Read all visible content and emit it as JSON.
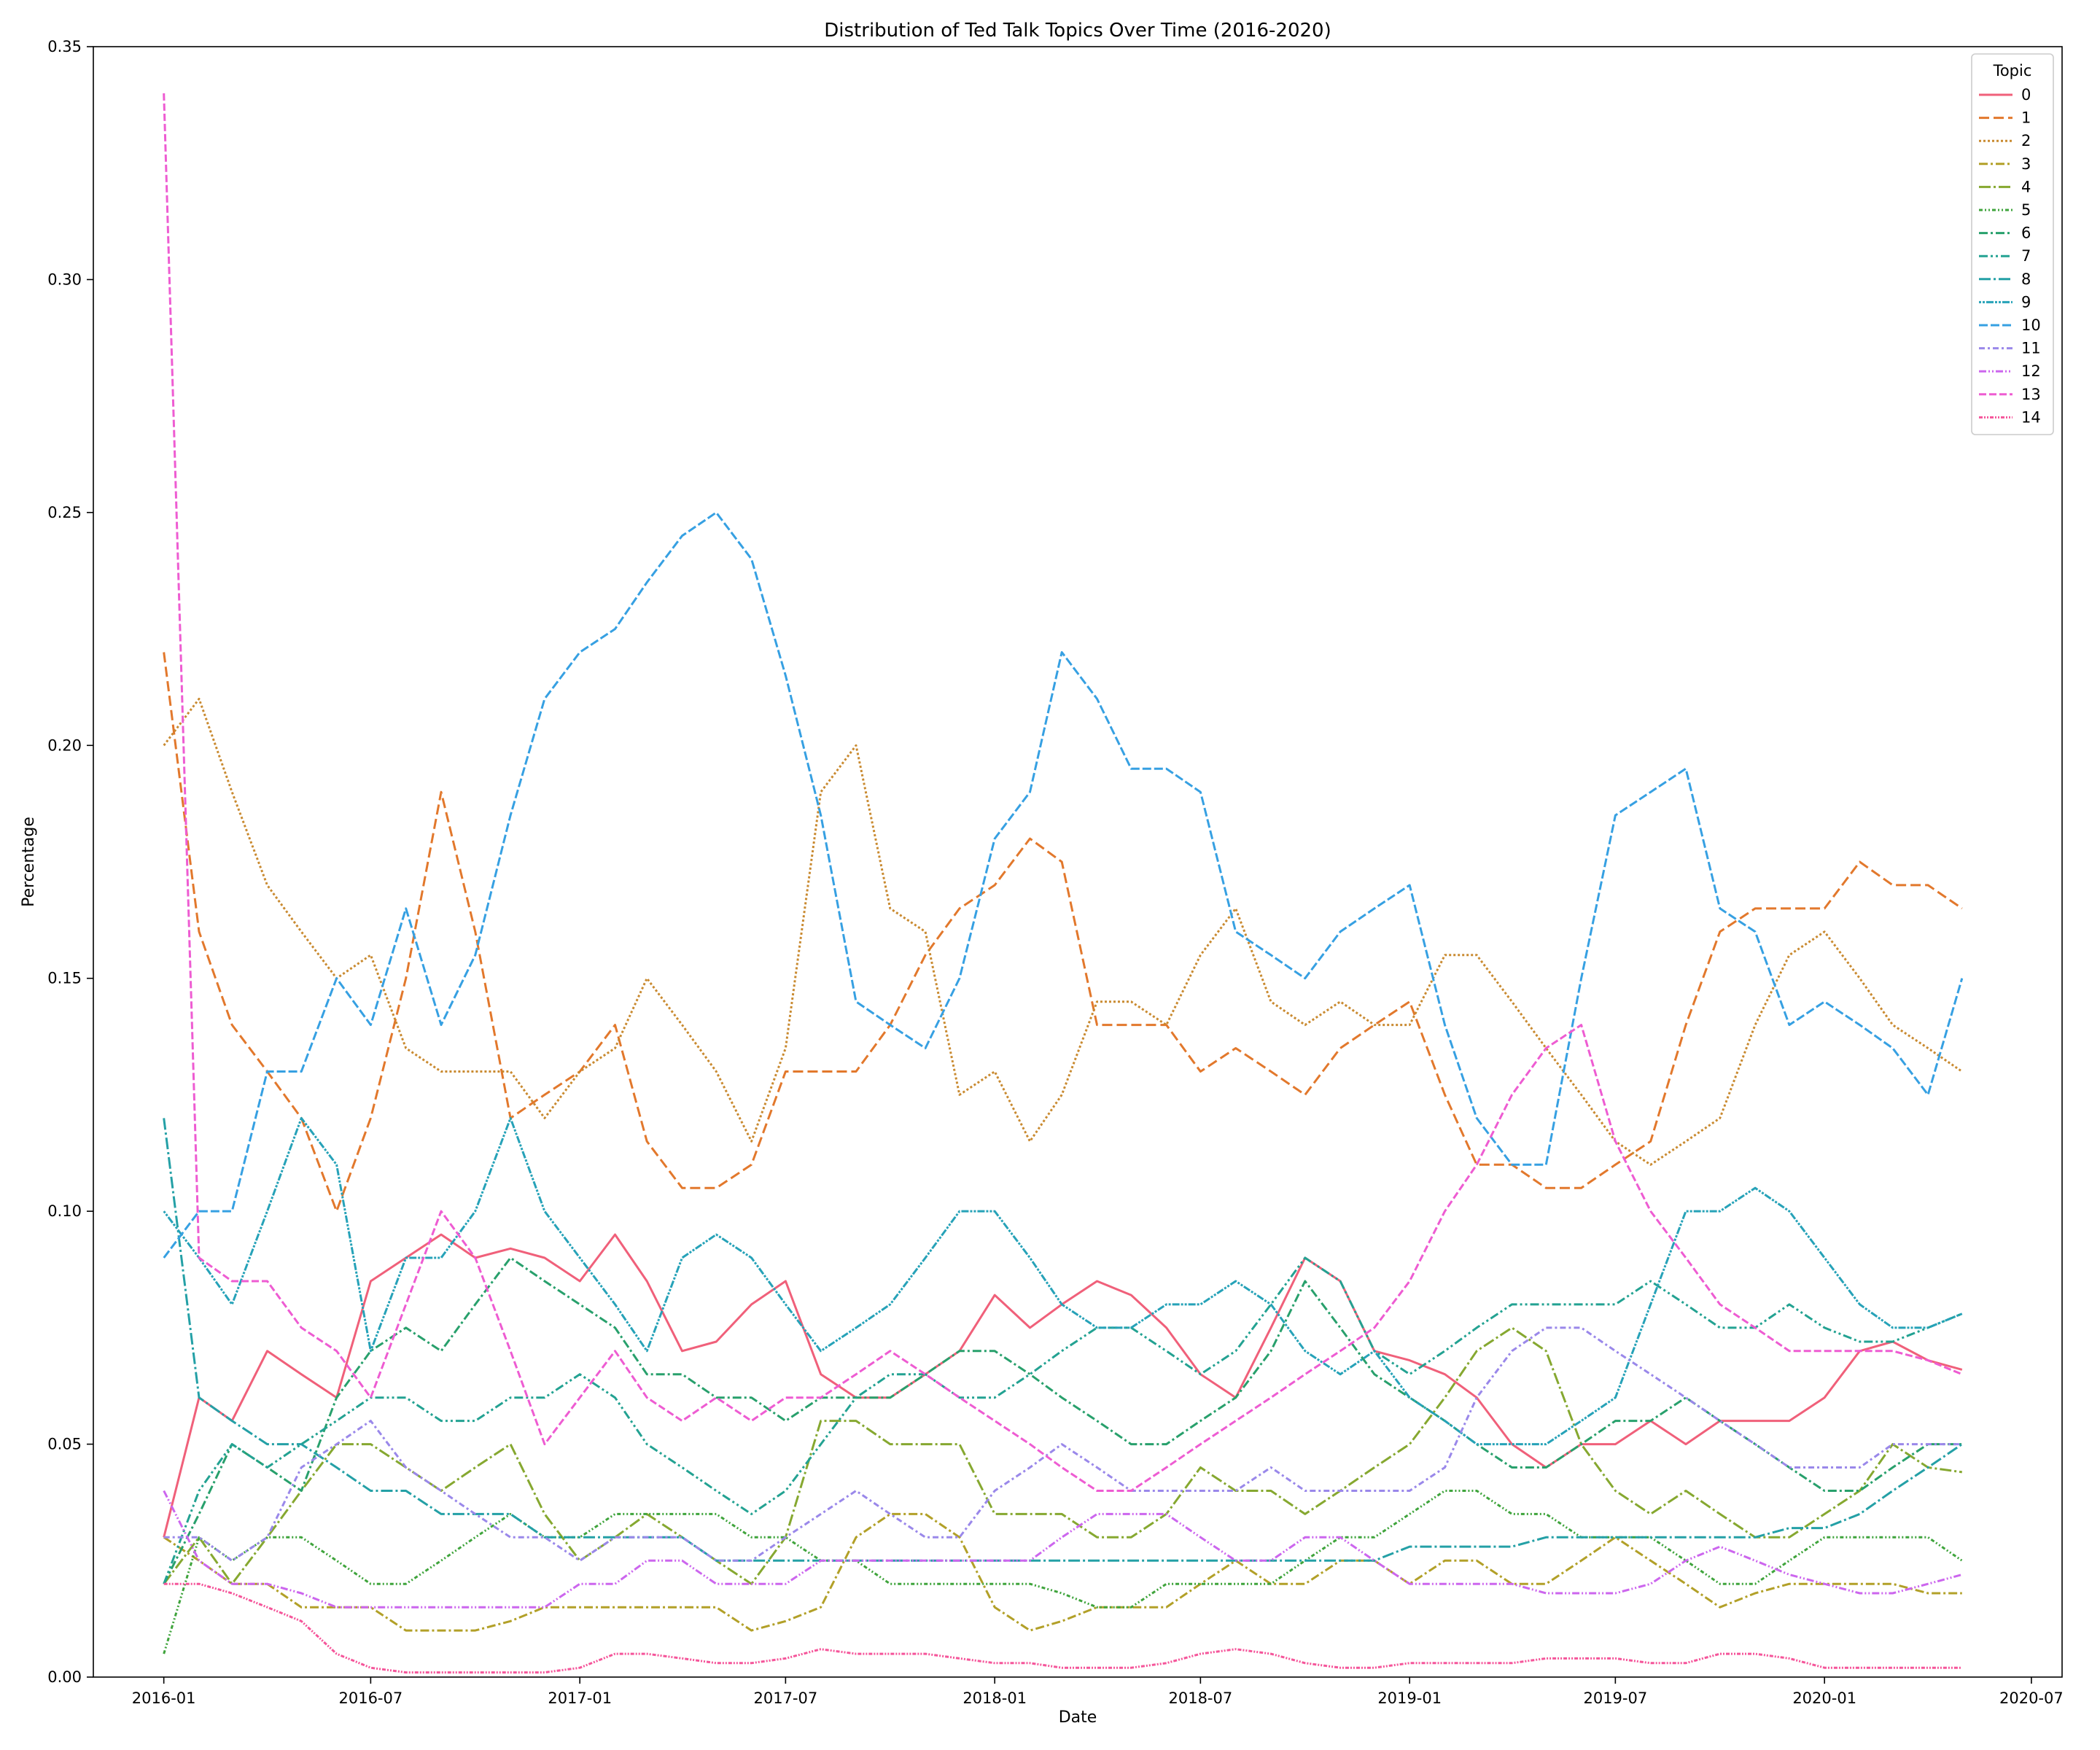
{
  "chart_data": {
    "type": "line",
    "title": "Distribution of Ted Talk Topics Over Time (2016-2020)",
    "xlabel": "Date",
    "ylabel": "Percentage",
    "ylim": [
      0,
      0.35
    ],
    "xlim": [
      "2015-10-31",
      "2020-07-28"
    ],
    "x_ticks": [
      "2016-01",
      "2016-07",
      "2017-01",
      "2017-07",
      "2018-01",
      "2018-07",
      "2019-01",
      "2019-07",
      "2020-01",
      "2020-07"
    ],
    "y_ticks": [
      "0.00",
      "0.05",
      "0.10",
      "0.15",
      "0.20",
      "0.25",
      "0.30",
      "0.35"
    ],
    "grid": false,
    "legend": {
      "title": "Topic",
      "placement": "top-right"
    },
    "x": [
      "2016-01-01",
      "2016-02-01",
      "2016-03-01",
      "2016-04-01",
      "2016-05-01",
      "2016-06-01",
      "2016-07-01",
      "2016-08-01",
      "2016-09-01",
      "2016-10-01",
      "2016-11-01",
      "2016-12-01",
      "2017-01-01",
      "2017-02-01",
      "2017-03-01",
      "2017-04-01",
      "2017-05-01",
      "2017-06-01",
      "2017-07-01",
      "2017-08-01",
      "2017-09-01",
      "2017-10-01",
      "2017-11-01",
      "2017-12-01",
      "2018-01-01",
      "2018-02-01",
      "2018-03-01",
      "2018-04-01",
      "2018-05-01",
      "2018-06-01",
      "2018-07-01",
      "2018-08-01",
      "2018-09-01",
      "2018-10-01",
      "2018-11-01",
      "2018-12-01",
      "2019-01-01",
      "2019-02-01",
      "2019-03-01",
      "2019-04-01",
      "2019-05-01",
      "2019-06-01",
      "2019-07-01",
      "2019-08-01",
      "2019-09-01",
      "2019-10-01",
      "2019-11-01",
      "2019-12-01",
      "2020-01-01",
      "2020-02-01",
      "2020-03-01",
      "2020-04-01",
      "2020-05-01"
    ],
    "series": [
      {
        "name": "0",
        "color": "#f0607a",
        "dash": "",
        "values": [
          0.03,
          0.06,
          0.055,
          0.07,
          0.065,
          0.06,
          0.085,
          0.09,
          0.095,
          0.09,
          0.092,
          0.09,
          0.085,
          0.095,
          0.085,
          0.07,
          0.072,
          0.08,
          0.085,
          0.065,
          0.06,
          0.06,
          0.065,
          0.07,
          0.082,
          0.075,
          0.08,
          0.085,
          0.082,
          0.075,
          0.065,
          0.06,
          0.075,
          0.09,
          0.085,
          0.07,
          0.068,
          0.065,
          0.06,
          0.05,
          0.045,
          0.05,
          0.05,
          0.055,
          0.05,
          0.055,
          0.055,
          0.055,
          0.06,
          0.07,
          0.072,
          0.068,
          0.066
        ]
      },
      {
        "name": "1",
        "color": "#e2782c",
        "dash": "14,6",
        "values": [
          0.22,
          0.16,
          0.14,
          0.13,
          0.12,
          0.1,
          0.12,
          0.15,
          0.19,
          0.16,
          0.12,
          0.125,
          0.13,
          0.14,
          0.115,
          0.105,
          0.105,
          0.11,
          0.13,
          0.13,
          0.13,
          0.14,
          0.155,
          0.165,
          0.17,
          0.18,
          0.175,
          0.14,
          0.14,
          0.14,
          0.13,
          0.135,
          0.13,
          0.125,
          0.135,
          0.14,
          0.145,
          0.125,
          0.11,
          0.11,
          0.105,
          0.105,
          0.11,
          0.115,
          0.14,
          0.16,
          0.165,
          0.165,
          0.165,
          0.175,
          0.17,
          0.17,
          0.165
        ]
      },
      {
        "name": "2",
        "color": "#c98a30",
        "dash": "3,3",
        "values": [
          0.2,
          0.21,
          0.19,
          0.17,
          0.16,
          0.15,
          0.155,
          0.135,
          0.13,
          0.13,
          0.13,
          0.12,
          0.13,
          0.135,
          0.15,
          0.14,
          0.13,
          0.115,
          0.135,
          0.19,
          0.2,
          0.165,
          0.16,
          0.125,
          0.13,
          0.115,
          0.125,
          0.145,
          0.145,
          0.14,
          0.155,
          0.165,
          0.145,
          0.14,
          0.145,
          0.14,
          0.14,
          0.155,
          0.155,
          0.145,
          0.135,
          0.125,
          0.115,
          0.11,
          0.115,
          0.12,
          0.14,
          0.155,
          0.16,
          0.15,
          0.14,
          0.135,
          0.13
        ]
      },
      {
        "name": "3",
        "color": "#b2a028",
        "dash": "12,4,3,4",
        "values": [
          0.03,
          0.025,
          0.02,
          0.02,
          0.015,
          0.015,
          0.015,
          0.01,
          0.01,
          0.01,
          0.012,
          0.015,
          0.015,
          0.015,
          0.015,
          0.015,
          0.015,
          0.01,
          0.012,
          0.015,
          0.03,
          0.035,
          0.035,
          0.03,
          0.015,
          0.01,
          0.012,
          0.015,
          0.015,
          0.015,
          0.02,
          0.025,
          0.02,
          0.02,
          0.025,
          0.025,
          0.02,
          0.025,
          0.025,
          0.02,
          0.02,
          0.025,
          0.03,
          0.025,
          0.02,
          0.015,
          0.018,
          0.02,
          0.02,
          0.02,
          0.02,
          0.018,
          0.018
        ]
      },
      {
        "name": "4",
        "color": "#86a830",
        "dash": "16,4,3,4",
        "values": [
          0.02,
          0.03,
          0.02,
          0.03,
          0.04,
          0.05,
          0.05,
          0.045,
          0.04,
          0.045,
          0.05,
          0.035,
          0.025,
          0.03,
          0.035,
          0.03,
          0.025,
          0.02,
          0.03,
          0.055,
          0.055,
          0.05,
          0.05,
          0.05,
          0.035,
          0.035,
          0.035,
          0.03,
          0.03,
          0.035,
          0.045,
          0.04,
          0.04,
          0.035,
          0.04,
          0.045,
          0.05,
          0.06,
          0.07,
          0.075,
          0.07,
          0.05,
          0.04,
          0.035,
          0.04,
          0.035,
          0.03,
          0.03,
          0.035,
          0.04,
          0.05,
          0.045,
          0.044
        ]
      },
      {
        "name": "5",
        "color": "#3fa43c",
        "dash": "5,3,2,3,2,3",
        "values": [
          0.005,
          0.03,
          0.025,
          0.03,
          0.03,
          0.025,
          0.02,
          0.02,
          0.025,
          0.03,
          0.035,
          0.03,
          0.03,
          0.035,
          0.035,
          0.035,
          0.035,
          0.03,
          0.03,
          0.025,
          0.025,
          0.02,
          0.02,
          0.02,
          0.02,
          0.02,
          0.018,
          0.015,
          0.015,
          0.02,
          0.02,
          0.02,
          0.02,
          0.025,
          0.03,
          0.03,
          0.035,
          0.04,
          0.04,
          0.035,
          0.035,
          0.03,
          0.03,
          0.03,
          0.025,
          0.02,
          0.02,
          0.025,
          0.03,
          0.03,
          0.03,
          0.03,
          0.025
        ]
      },
      {
        "name": "6",
        "color": "#28a06c",
        "dash": "12,4,3,4",
        "values": [
          0.02,
          0.035,
          0.05,
          0.045,
          0.04,
          0.06,
          0.07,
          0.075,
          0.07,
          0.08,
          0.09,
          0.085,
          0.08,
          0.075,
          0.065,
          0.065,
          0.06,
          0.06,
          0.055,
          0.06,
          0.06,
          0.06,
          0.065,
          0.07,
          0.07,
          0.065,
          0.06,
          0.055,
          0.05,
          0.05,
          0.055,
          0.06,
          0.07,
          0.085,
          0.075,
          0.065,
          0.06,
          0.055,
          0.05,
          0.045,
          0.045,
          0.05,
          0.055,
          0.055,
          0.06,
          0.055,
          0.05,
          0.045,
          0.04,
          0.04,
          0.045,
          0.05,
          0.05
        ]
      },
      {
        "name": "7",
        "color": "#23a292",
        "dash": "12,4,3,4,3,4",
        "values": [
          0.02,
          0.04,
          0.05,
          0.045,
          0.05,
          0.055,
          0.06,
          0.06,
          0.055,
          0.055,
          0.06,
          0.06,
          0.065,
          0.06,
          0.05,
          0.045,
          0.04,
          0.035,
          0.04,
          0.05,
          0.06,
          0.065,
          0.065,
          0.06,
          0.06,
          0.065,
          0.07,
          0.075,
          0.075,
          0.07,
          0.065,
          0.07,
          0.08,
          0.09,
          0.085,
          0.07,
          0.065,
          0.07,
          0.075,
          0.08,
          0.08,
          0.08,
          0.08,
          0.085,
          0.08,
          0.075,
          0.075,
          0.08,
          0.075,
          0.072,
          0.072,
          0.075,
          0.078
        ]
      },
      {
        "name": "8",
        "color": "#24a0a6",
        "dash": "16,4,3,4",
        "values": [
          0.12,
          0.06,
          0.055,
          0.05,
          0.05,
          0.045,
          0.04,
          0.04,
          0.035,
          0.035,
          0.035,
          0.03,
          0.03,
          0.03,
          0.03,
          0.03,
          0.025,
          0.025,
          0.025,
          0.025,
          0.025,
          0.025,
          0.025,
          0.025,
          0.025,
          0.025,
          0.025,
          0.025,
          0.025,
          0.025,
          0.025,
          0.025,
          0.025,
          0.025,
          0.025,
          0.025,
          0.028,
          0.028,
          0.028,
          0.028,
          0.03,
          0.03,
          0.03,
          0.03,
          0.03,
          0.03,
          0.03,
          0.032,
          0.032,
          0.035,
          0.04,
          0.045,
          0.05
        ]
      },
      {
        "name": "9",
        "color": "#26a2b8",
        "dash": "3,2,3,2,10,2",
        "values": [
          0.1,
          0.09,
          0.08,
          0.1,
          0.12,
          0.11,
          0.07,
          0.09,
          0.09,
          0.1,
          0.12,
          0.1,
          0.09,
          0.08,
          0.07,
          0.09,
          0.095,
          0.09,
          0.08,
          0.07,
          0.075,
          0.08,
          0.09,
          0.1,
          0.1,
          0.09,
          0.08,
          0.075,
          0.075,
          0.08,
          0.08,
          0.085,
          0.08,
          0.07,
          0.065,
          0.07,
          0.06,
          0.055,
          0.05,
          0.05,
          0.05,
          0.055,
          0.06,
          0.08,
          0.1,
          0.1,
          0.105,
          0.1,
          0.09,
          0.08,
          0.075,
          0.075,
          0.078
        ]
      },
      {
        "name": "10",
        "color": "#36a0e2",
        "dash": "12,4",
        "values": [
          0.09,
          0.1,
          0.1,
          0.13,
          0.13,
          0.15,
          0.14,
          0.165,
          0.14,
          0.155,
          0.185,
          0.21,
          0.22,
          0.225,
          0.235,
          0.245,
          0.25,
          0.24,
          0.215,
          0.185,
          0.145,
          0.14,
          0.135,
          0.15,
          0.18,
          0.19,
          0.22,
          0.21,
          0.195,
          0.195,
          0.19,
          0.16,
          0.155,
          0.15,
          0.16,
          0.165,
          0.17,
          0.14,
          0.12,
          0.11,
          0.11,
          0.15,
          0.185,
          0.19,
          0.195,
          0.165,
          0.16,
          0.14,
          0.145,
          0.14,
          0.135,
          0.125,
          0.15
        ]
      },
      {
        "name": "11",
        "color": "#9a88ea",
        "dash": "8,4,3,4",
        "values": [
          0.03,
          0.03,
          0.025,
          0.03,
          0.045,
          0.05,
          0.055,
          0.045,
          0.04,
          0.035,
          0.03,
          0.03,
          0.025,
          0.03,
          0.03,
          0.03,
          0.025,
          0.025,
          0.03,
          0.035,
          0.04,
          0.035,
          0.03,
          0.03,
          0.04,
          0.045,
          0.05,
          0.045,
          0.04,
          0.04,
          0.04,
          0.04,
          0.045,
          0.04,
          0.04,
          0.04,
          0.04,
          0.045,
          0.06,
          0.07,
          0.075,
          0.075,
          0.07,
          0.065,
          0.06,
          0.055,
          0.05,
          0.045,
          0.045,
          0.045,
          0.05,
          0.05,
          0.05
        ]
      },
      {
        "name": "12",
        "color": "#cc66ee",
        "dash": "10,3,2,3,2,3",
        "values": [
          0.04,
          0.025,
          0.02,
          0.02,
          0.018,
          0.015,
          0.015,
          0.015,
          0.015,
          0.015,
          0.015,
          0.015,
          0.02,
          0.02,
          0.025,
          0.025,
          0.02,
          0.02,
          0.02,
          0.025,
          0.025,
          0.025,
          0.025,
          0.025,
          0.025,
          0.025,
          0.03,
          0.035,
          0.035,
          0.035,
          0.03,
          0.025,
          0.025,
          0.03,
          0.03,
          0.025,
          0.02,
          0.02,
          0.02,
          0.02,
          0.018,
          0.018,
          0.018,
          0.02,
          0.025,
          0.028,
          0.025,
          0.022,
          0.02,
          0.018,
          0.018,
          0.02,
          0.022
        ]
      },
      {
        "name": "13",
        "color": "#ee5cd2",
        "dash": "10,4",
        "values": [
          0.34,
          0.09,
          0.085,
          0.085,
          0.075,
          0.07,
          0.06,
          0.08,
          0.1,
          0.09,
          0.07,
          0.05,
          0.06,
          0.07,
          0.06,
          0.055,
          0.06,
          0.055,
          0.06,
          0.06,
          0.065,
          0.07,
          0.065,
          0.06,
          0.055,
          0.05,
          0.045,
          0.04,
          0.04,
          0.045,
          0.05,
          0.055,
          0.06,
          0.065,
          0.07,
          0.075,
          0.085,
          0.1,
          0.11,
          0.125,
          0.135,
          0.14,
          0.115,
          0.1,
          0.09,
          0.08,
          0.075,
          0.07,
          0.07,
          0.07,
          0.07,
          0.068,
          0.065
        ]
      },
      {
        "name": "14",
        "color": "#f5559a",
        "dash": "5,2,2,2,2,2",
        "values": [
          0.02,
          0.02,
          0.018,
          0.015,
          0.012,
          0.005,
          0.002,
          0.001,
          0.001,
          0.001,
          0.001,
          0.001,
          0.002,
          0.005,
          0.005,
          0.004,
          0.003,
          0.003,
          0.004,
          0.006,
          0.005,
          0.005,
          0.005,
          0.004,
          0.003,
          0.003,
          0.002,
          0.002,
          0.002,
          0.003,
          0.005,
          0.006,
          0.005,
          0.003,
          0.002,
          0.002,
          0.003,
          0.003,
          0.003,
          0.003,
          0.004,
          0.004,
          0.004,
          0.003,
          0.003,
          0.005,
          0.005,
          0.004,
          0.002,
          0.002,
          0.002,
          0.002,
          0.002
        ]
      }
    ]
  }
}
